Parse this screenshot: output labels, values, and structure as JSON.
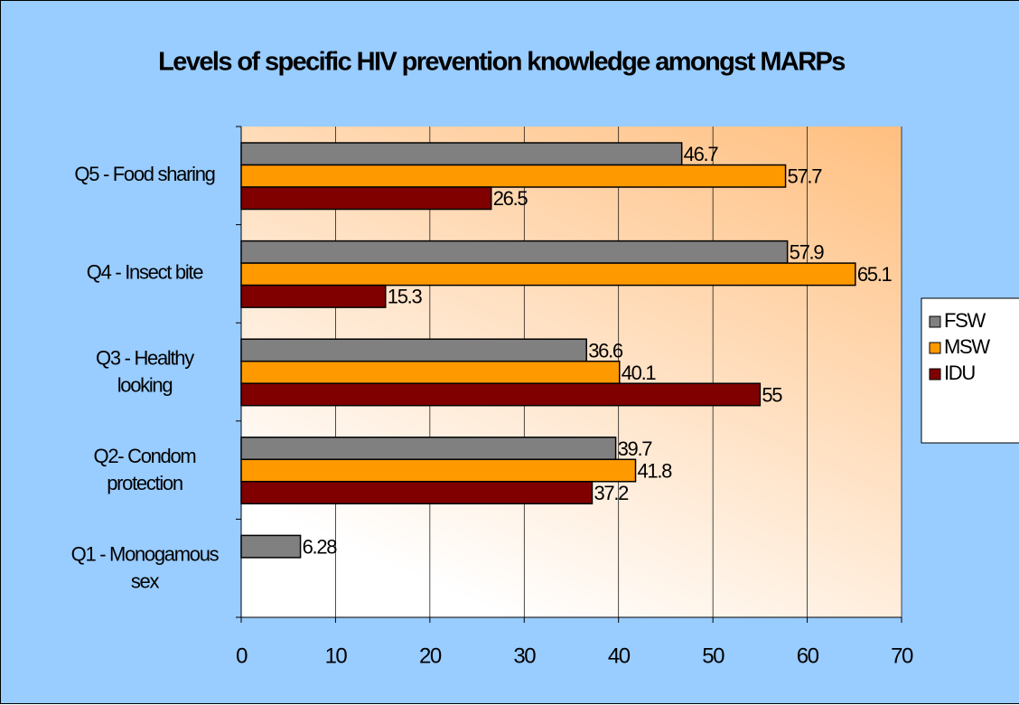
{
  "chart_data": {
    "type": "hbar",
    "title": "Levels of specific HIV prevention knowledge amongst MARPs",
    "categories": [
      "Q1 - Monogamous sex",
      "Q2- Condom protection",
      "Q3 - Healthy looking",
      "Q4 - Insect bite",
      "Q5 - Food sharing"
    ],
    "series": [
      {
        "name": "FSW",
        "color": "#808080",
        "values": [
          6.28,
          39.7,
          36.6,
          57.9,
          46.7
        ]
      },
      {
        "name": "MSW",
        "color": "#ff9900",
        "values": [
          null,
          41.8,
          40.1,
          65.1,
          57.7
        ]
      },
      {
        "name": "IDU",
        "color": "#800000",
        "values": [
          null,
          37.2,
          55,
          15.3,
          26.5
        ]
      }
    ],
    "xlim": [
      0,
      70
    ],
    "xticks": [
      0,
      10,
      20,
      30,
      40,
      50,
      60,
      70
    ],
    "grid": true,
    "legend": "right"
  }
}
